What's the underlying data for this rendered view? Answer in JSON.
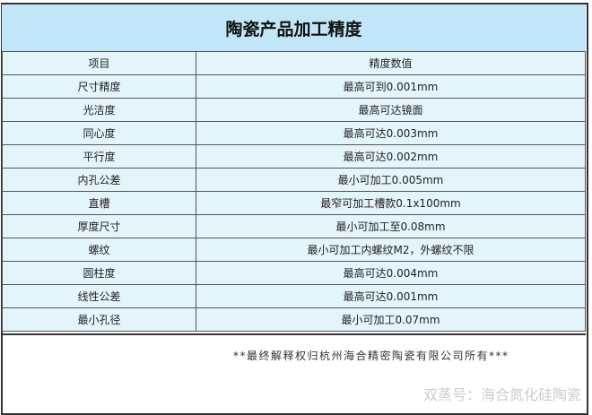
{
  "title": "陶瓷产品加工精度",
  "columns": [
    "项目",
    "精度数值"
  ],
  "rows": [
    [
      "尺寸精度",
      "最高可到0.001mm"
    ],
    [
      "光洁度",
      "最高可达镜面"
    ],
    [
      "同心度",
      "最高可达0.003mm"
    ],
    [
      "平行度",
      "最高可达0.002mm"
    ],
    [
      "内孔公差",
      "最小可加工0.005mm"
    ],
    [
      "直槽",
      "最窄可加工槽款0.1x100mm"
    ],
    [
      "厚度尺寸",
      "最小可加工至0.08mm"
    ],
    [
      "螺纹",
      "最小可加工内螺纹M2，外螺纹不限"
    ],
    [
      "圆柱度",
      "最高可达0.004mm"
    ],
    [
      "线性公差",
      "最高可达0.001mm"
    ],
    [
      "最小孔径",
      "最小可加工0.07mm"
    ]
  ],
  "footer": "**最终解释权归杭州海合精密陶瓷有限公司所有***",
  "watermark": "双蒸号：海合氮化硅陶瓷"
}
